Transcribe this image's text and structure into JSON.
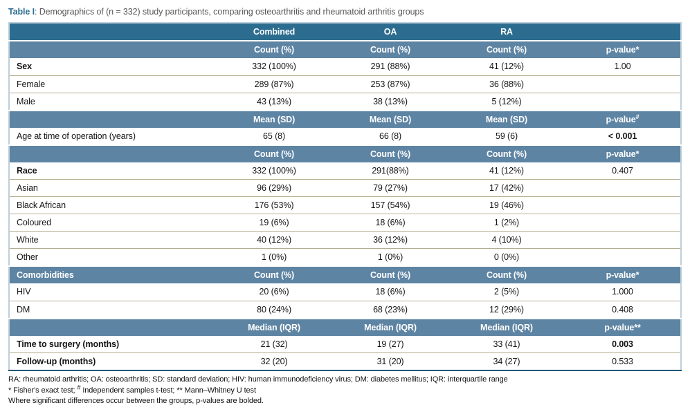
{
  "title": {
    "label": "Table I",
    "rest": ": Demographics of (n = 332) study participants, comparing osteoarthritis and rheumatoid arthritis groups"
  },
  "colors": {
    "header_dark": "#2c6d8f",
    "header_light": "#5e84a3",
    "divider": "#b5ad8f",
    "border": "#bdd0dd",
    "border_bottom": "#1f5878",
    "title_accent": "#2c6d8f",
    "text_gray": "#58585a"
  },
  "table": {
    "column_keys": [
      "label",
      "combined",
      "oa",
      "ra",
      "p-value"
    ],
    "rows": [
      {
        "type": "dark",
        "cells": [
          "",
          "Combined",
          "OA",
          "RA",
          ""
        ]
      },
      {
        "type": "light",
        "cells": [
          "",
          "Count (%)",
          "Count (%)",
          "Count (%)",
          "p-value*"
        ]
      },
      {
        "type": "data",
        "cells": [
          {
            "text": "Sex",
            "bold": true
          },
          "332 (100%)",
          "291 (88%)",
          "41 (12%)",
          "1.00"
        ]
      },
      {
        "type": "data",
        "cells": [
          "Female",
          "289 (87%)",
          "253 (87%)",
          "36 (88%)",
          ""
        ]
      },
      {
        "type": "data",
        "cells": [
          "Male",
          "43 (13%)",
          "38 (13%)",
          "5 (12%)",
          ""
        ]
      },
      {
        "type": "light",
        "cells": [
          "",
          "Mean (SD)",
          "Mean (SD)",
          "Mean (SD)",
          {
            "text": "p-value",
            "sup": "#"
          }
        ]
      },
      {
        "type": "data",
        "cells": [
          "Age at time of operation (years)",
          "65 (8)",
          "66 (8)",
          "59 (6)",
          {
            "text": "< 0.001",
            "bold": true
          }
        ]
      },
      {
        "type": "light",
        "cells": [
          "",
          "Count (%)",
          "Count (%)",
          "Count (%)",
          "p-value*"
        ]
      },
      {
        "type": "data",
        "cells": [
          {
            "text": "Race",
            "bold": true
          },
          "332 (100%)",
          "291(88%)",
          "41 (12%)",
          "0.407"
        ]
      },
      {
        "type": "data",
        "cells": [
          "Asian",
          "96 (29%)",
          "79 (27%)",
          "17 (42%)",
          ""
        ]
      },
      {
        "type": "data",
        "cells": [
          "Black African",
          "176 (53%)",
          "157 (54%)",
          "19 (46%)",
          ""
        ]
      },
      {
        "type": "data",
        "cells": [
          "Coloured",
          "19 (6%)",
          "18 (6%)",
          "1 (2%)",
          ""
        ]
      },
      {
        "type": "data",
        "cells": [
          "White",
          "40 (12%)",
          "36 (12%)",
          "4 (10%)",
          ""
        ]
      },
      {
        "type": "data",
        "cells": [
          "Other",
          "1 (0%)",
          "1 (0%)",
          "0 (0%)",
          ""
        ]
      },
      {
        "type": "light",
        "cells": [
          "Comorbidities",
          "Count (%)",
          "Count (%)",
          "Count (%)",
          "p-value*"
        ]
      },
      {
        "type": "data",
        "cells": [
          "HIV",
          "20 (6%)",
          "18 (6%)",
          "2 (5%)",
          "1.000"
        ]
      },
      {
        "type": "data",
        "cells": [
          "DM",
          "80 (24%)",
          "68 (23%)",
          "12 (29%)",
          "0.408"
        ]
      },
      {
        "type": "light",
        "cells": [
          "",
          "Median (IQR)",
          "Median (IQR)",
          "Median (IQR)",
          "p-value**"
        ]
      },
      {
        "type": "data",
        "cells": [
          {
            "text": "Time to surgery (months)",
            "bold": true
          },
          "21 (32)",
          "19 (27)",
          "33 (41)",
          {
            "text": "0.003",
            "bold": true
          }
        ]
      },
      {
        "type": "data",
        "cells": [
          {
            "text": "Follow-up (months)",
            "bold": true
          },
          "32 (20)",
          "31 (20)",
          "34 (27)",
          "0.533"
        ]
      }
    ]
  },
  "footnotes": [
    [
      {
        "text": "RA: rheumatoid arthritis; OA: osteoarthritis; SD: standard deviation; HIV: human immunodeficiency virus; DM: diabetes mellitus; IQR: interquartile range"
      }
    ],
    [
      {
        "text": "* Fisher's exact test; "
      },
      {
        "sup": "#"
      },
      {
        "text": " Independent samples t-test; ** Mann–Whitney U test"
      }
    ],
    [
      {
        "text": "Where significant differences occur between the groups, p-values are bolded."
      }
    ]
  ]
}
